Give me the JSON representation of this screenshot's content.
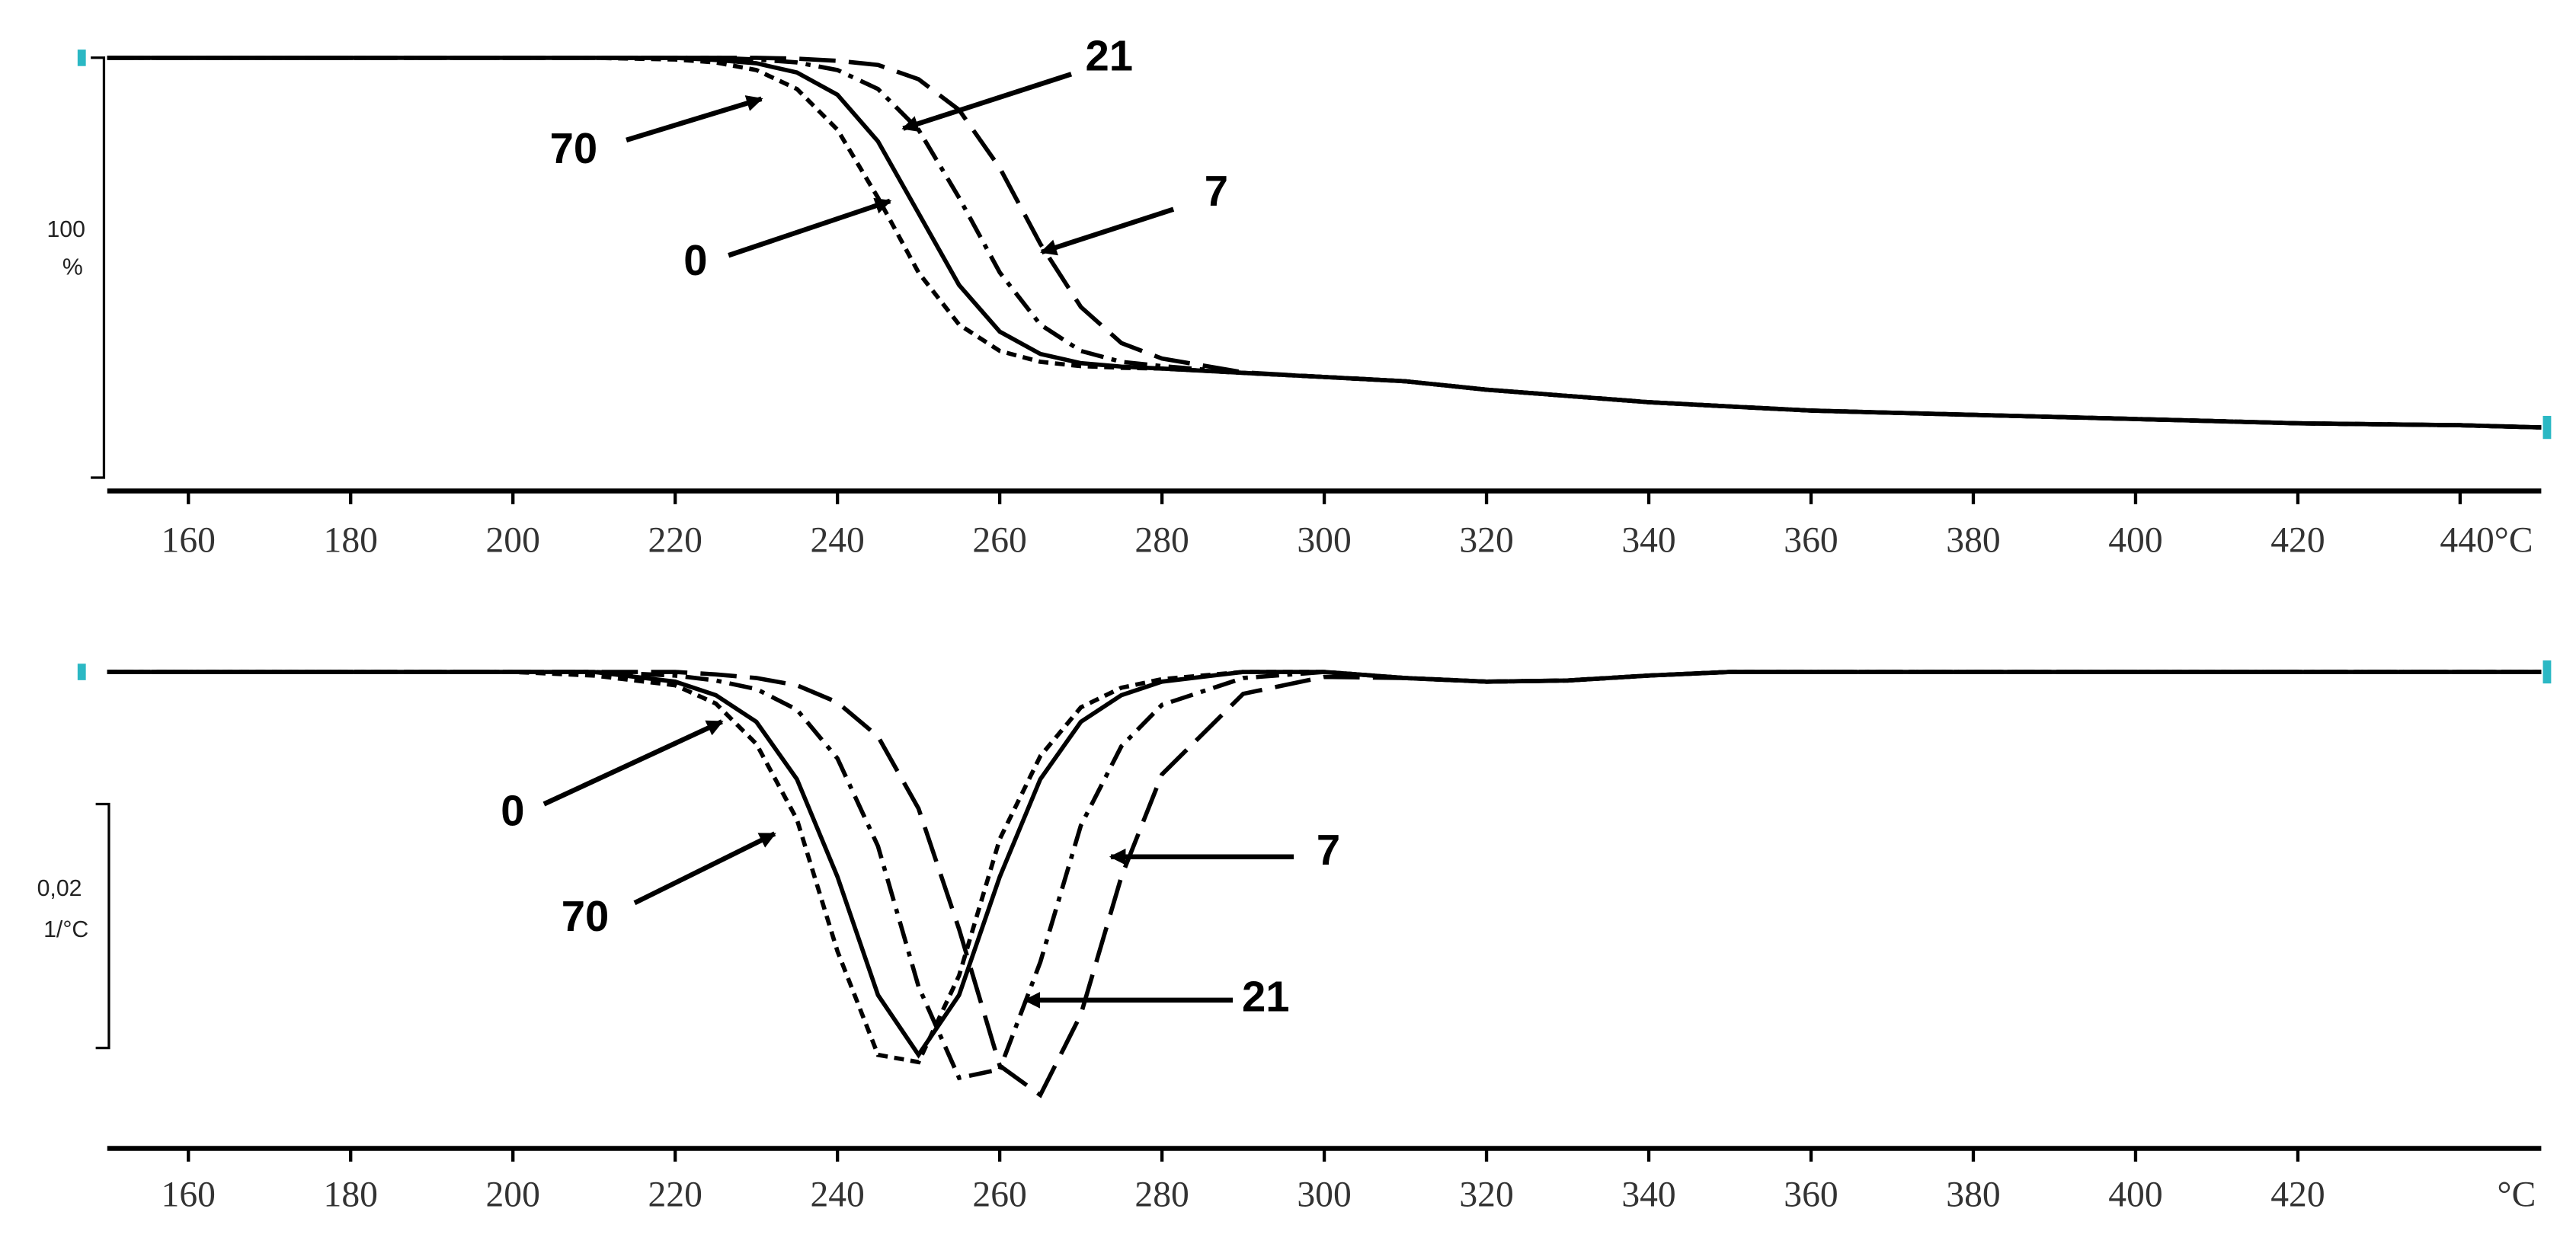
{
  "chart_data": [
    {
      "type": "line",
      "x": [
        150,
        170,
        190,
        200,
        210,
        220,
        225,
        230,
        235,
        240,
        245,
        250,
        255,
        260,
        265,
        270,
        275,
        280,
        290,
        300,
        310,
        320,
        330,
        340,
        350,
        360,
        380,
        400,
        420,
        440,
        450
      ],
      "series": [
        {
          "name": "0",
          "color": "#000000",
          "dash": "solid",
          "values": [
            100,
            100,
            100,
            100,
            100,
            100,
            99.5,
            98.7,
            96.5,
            91.2,
            80.1,
            63,
            45.9,
            34.8,
            29.5,
            27.3,
            26.5,
            26,
            25,
            24,
            23,
            21,
            19.5,
            18,
            17,
            16,
            15,
            14,
            13,
            12.5,
            12
          ]
        },
        {
          "name": "7",
          "color": "#000000",
          "dash": "long-dash",
          "values": [
            100,
            100,
            100,
            100,
            100,
            100,
            100,
            100,
            99.8,
            99.3,
            98.3,
            94.9,
            87.6,
            73.8,
            55.7,
            40.7,
            32.1,
            28.4,
            25.1,
            24,
            23,
            21,
            19.5,
            18,
            17,
            16,
            15,
            14,
            13,
            12.5,
            12
          ]
        },
        {
          "name": "21",
          "color": "#000000",
          "dash": "dash-dot",
          "values": [
            100,
            100,
            100,
            100,
            100,
            100,
            100,
            99.6,
            98.9,
            97.1,
            92.6,
            82.9,
            66.7,
            48.9,
            36.5,
            30.2,
            27.6,
            26.6,
            25,
            24,
            23,
            21,
            19.5,
            18,
            17,
            16,
            15,
            14,
            13,
            12.5,
            12
          ]
        },
        {
          "name": "70",
          "color": "#000000",
          "dash": "short-dash",
          "values": [
            100,
            100,
            100,
            100,
            100,
            99.6,
            98.9,
            97.1,
            92.6,
            82.9,
            66.7,
            48.9,
            36.5,
            30.2,
            27.6,
            26.6,
            26.2,
            26,
            25,
            24,
            23,
            21,
            19.5,
            18,
            17,
            16,
            15,
            14,
            13,
            12.5,
            12
          ]
        }
      ],
      "xlim": [
        150,
        450
      ],
      "xticks": [
        160,
        180,
        200,
        220,
        240,
        260,
        280,
        300,
        320,
        340,
        360,
        380,
        400,
        420,
        {
          "value": 440,
          "label": "440°C"
        }
      ],
      "ylim": [
        0,
        102
      ],
      "scale_bar": 100,
      "scale_unit": "%"
    },
    {
      "type": "line",
      "x": [
        150,
        170,
        190,
        200,
        210,
        220,
        225,
        230,
        235,
        240,
        245,
        250,
        255,
        260,
        265,
        270,
        275,
        280,
        290,
        300,
        310,
        320,
        330,
        340,
        350,
        360,
        380,
        400,
        420,
        440,
        450
      ],
      "series": [
        {
          "name": "0",
          "color": "#000000",
          "dash": "solid",
          "values": [
            0,
            0,
            0,
            0,
            0,
            -0.0008,
            -0.0019,
            -0.0041,
            -0.0088,
            -0.0168,
            -0.0265,
            -0.0314,
            -0.0265,
            -0.0168,
            -0.0088,
            -0.0041,
            -0.0019,
            -0.0008,
            0,
            0,
            -0.0005,
            -0.0008,
            -0.0007,
            -0.0003,
            0,
            0,
            0,
            0,
            0,
            0,
            0
          ]
        },
        {
          "name": "70",
          "color": "#000000",
          "dash": "short-dash",
          "values": [
            0,
            0,
            0,
            0,
            -0.0003,
            -0.0011,
            -0.0026,
            -0.0059,
            -0.0121,
            -0.0229,
            -0.0314,
            -0.032,
            -0.0249,
            -0.0137,
            -0.0069,
            -0.0029,
            -0.0013,
            -0.0006,
            0,
            0,
            -0.0005,
            -0.0008,
            -0.0007,
            -0.0003,
            0,
            0,
            0,
            0,
            0,
            0,
            0
          ]
        },
        {
          "name": "7",
          "color": "#000000",
          "dash": "long-dash",
          "values": [
            0,
            0,
            0,
            0,
            0,
            0,
            -0.0002,
            -0.0005,
            -0.0011,
            -0.0025,
            -0.0053,
            -0.0112,
            -0.0211,
            -0.0323,
            -0.0347,
            -0.0281,
            -0.0168,
            -0.0084,
            -0.0018,
            -0.0004,
            -0.0005,
            -0.0008,
            -0.0007,
            -0.0003,
            0,
            0,
            0,
            0,
            0,
            0,
            0
          ]
        },
        {
          "name": "21",
          "color": "#000000",
          "dash": "dash-dot",
          "values": [
            0,
            0,
            0,
            0,
            0,
            -0.0003,
            -0.0007,
            -0.0014,
            -0.0031,
            -0.0071,
            -0.0143,
            -0.0258,
            -0.0333,
            -0.0326,
            -0.0238,
            -0.0126,
            -0.0061,
            -0.0027,
            -0.0005,
            0,
            -0.0005,
            -0.0008,
            -0.0007,
            -0.0003,
            0,
            0,
            0,
            0,
            0,
            0,
            0
          ]
        }
      ],
      "xlim": [
        150,
        450
      ],
      "xticks": [
        160,
        180,
        200,
        220,
        240,
        260,
        280,
        300,
        320,
        340,
        360,
        380,
        400,
        420
      ],
      "xlabel": "°C",
      "ylim": [
        -0.038,
        0.002
      ],
      "scale_bar": {
        "value": 0.02,
        "label": "0,02"
      },
      "scale_unit": "1/°C"
    }
  ]
}
